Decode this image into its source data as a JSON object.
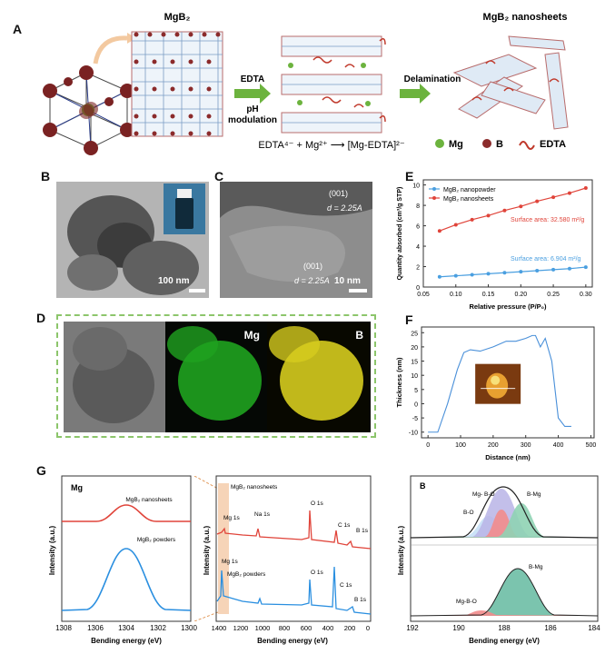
{
  "panel_letters": {
    "a": "A",
    "b": "B",
    "c": "C",
    "d": "D",
    "e": "E",
    "f": "F",
    "g": "G"
  },
  "panel_a": {
    "title_mgb2": "MgB₂",
    "title_nanosheets": "MgB₂ nanosheets",
    "arrow1_top": "EDTA",
    "arrow1_bottom_1": "pH",
    "arrow1_bottom_2": "modulation",
    "arrow2": "Delamination",
    "equation": "EDTA⁴⁻ + Mg²⁺ ⟶ [Mg-EDTA]²⁻",
    "legend": {
      "mg": "Mg",
      "b": "B",
      "edta": "EDTA"
    },
    "colors": {
      "mg": "#6cb33e",
      "b": "#8b2b2b",
      "edta": "#c0392b",
      "lattice_b": "#5a7fa8"
    }
  },
  "panel_b": {
    "scale": "100 nm"
  },
  "panel_c": {
    "lattice_top": "(001)",
    "d_top": "d = 2.25A",
    "lattice_bottom": "(001)",
    "d_bottom": "d = 2.25A",
    "scale": "10 nm"
  },
  "panel_d": {
    "mg_label": "Mg",
    "b_label": "B"
  },
  "panel_e": {
    "ylabel": "Quantity absorbed (cm³/g STP)",
    "xlabel": "Relative pressure (P/P₀)",
    "annotation_sheets": "Surface area: 32.580 m²/g",
    "annotation_powder": "Surface area: 6.904 m²/g",
    "yticks": [
      "0",
      "2",
      "4",
      "6",
      "8",
      "10"
    ],
    "xticks": [
      "0.05",
      "0.10",
      "0.15",
      "0.20",
      "0.25",
      "0.30"
    ]
  },
  "panel_f": {
    "ylabel": "Thickness (nm)",
    "xlabel": "Distance (nm)",
    "yticks": [
      "-10",
      "-5",
      "0",
      "5",
      "10",
      "15",
      "20",
      "25"
    ],
    "xticks": [
      "0",
      "100",
      "200",
      "300",
      "400",
      "500"
    ]
  },
  "panel_g1": {
    "title": "Mg",
    "label_top": "MgB₂ nanosheets",
    "label_bottom": "MgB₂ powders",
    "ylabel": "Intensity (a.u.)",
    "xlabel": "Bending energy (eV)",
    "xticks": [
      "1308",
      "1306",
      "1304",
      "1302",
      "1300"
    ]
  },
  "panel_g2": {
    "label_top": "MgB₂ nanosheets",
    "label_bottom": "MgB₂ powders",
    "peaks_top": [
      "Mg 1s",
      "Na 1s",
      "O 1s",
      "C 1s",
      "B 1s"
    ],
    "peaks_bottom": [
      "Mg 1s",
      "O 1s",
      "C 1s",
      "B 1s"
    ],
    "ylabel": "Intensity (a.u.)",
    "xlabel": "Bending energy (eV)",
    "xticks": [
      "1400",
      "1200",
      "1000",
      "800",
      "600",
      "400",
      "200",
      "0"
    ]
  },
  "panel_g3": {
    "title": "B",
    "top_labels": [
      "Mg- B-O",
      "B-Mg",
      "B-O"
    ],
    "bottom_labels": [
      "Mg-B-O",
      "B-Mg"
    ],
    "ylabel": "Intensity (a.u.)",
    "xlabel": "Bending energy (eV)",
    "xticks": [
      "192",
      "190",
      "188",
      "186",
      "184"
    ]
  },
  "chart_data": [
    {
      "type": "line",
      "panel": "E",
      "xlabel": "Relative pressure (P/P₀)",
      "ylabel": "Quantity absorbed (cm³/g STP)",
      "xlim": [
        0.05,
        0.31
      ],
      "ylim": [
        0,
        10.5
      ],
      "x": [
        0.075,
        0.1,
        0.125,
        0.15,
        0.175,
        0.2,
        0.225,
        0.25,
        0.275,
        0.3
      ],
      "series": [
        {
          "name": "MgB₂ nanopowder",
          "color": "#4a9fe0",
          "values": [
            1.0,
            1.1,
            1.2,
            1.3,
            1.4,
            1.5,
            1.6,
            1.7,
            1.8,
            1.95
          ]
        },
        {
          "name": "MgB₂ nanosheets",
          "color": "#e0443a",
          "values": [
            5.5,
            6.1,
            6.6,
            7.0,
            7.5,
            7.9,
            8.4,
            8.8,
            9.2,
            9.7
          ]
        }
      ]
    },
    {
      "type": "line",
      "panel": "F",
      "xlabel": "Distance (nm)",
      "ylabel": "Thickness (nm)",
      "xlim": [
        -20,
        510
      ],
      "ylim": [
        -12,
        27
      ],
      "series": [
        {
          "color": "#4a90d9",
          "x": [
            0,
            30,
            60,
            90,
            110,
            130,
            160,
            200,
            240,
            270,
            300,
            320,
            330,
            345,
            360,
            380,
            400,
            420,
            440
          ],
          "values": [
            -10,
            -10,
            0,
            12,
            18,
            19,
            18.5,
            20,
            22,
            22,
            23,
            24,
            24,
            20,
            23,
            15,
            -5,
            -8,
            -8
          ]
        }
      ]
    }
  ]
}
